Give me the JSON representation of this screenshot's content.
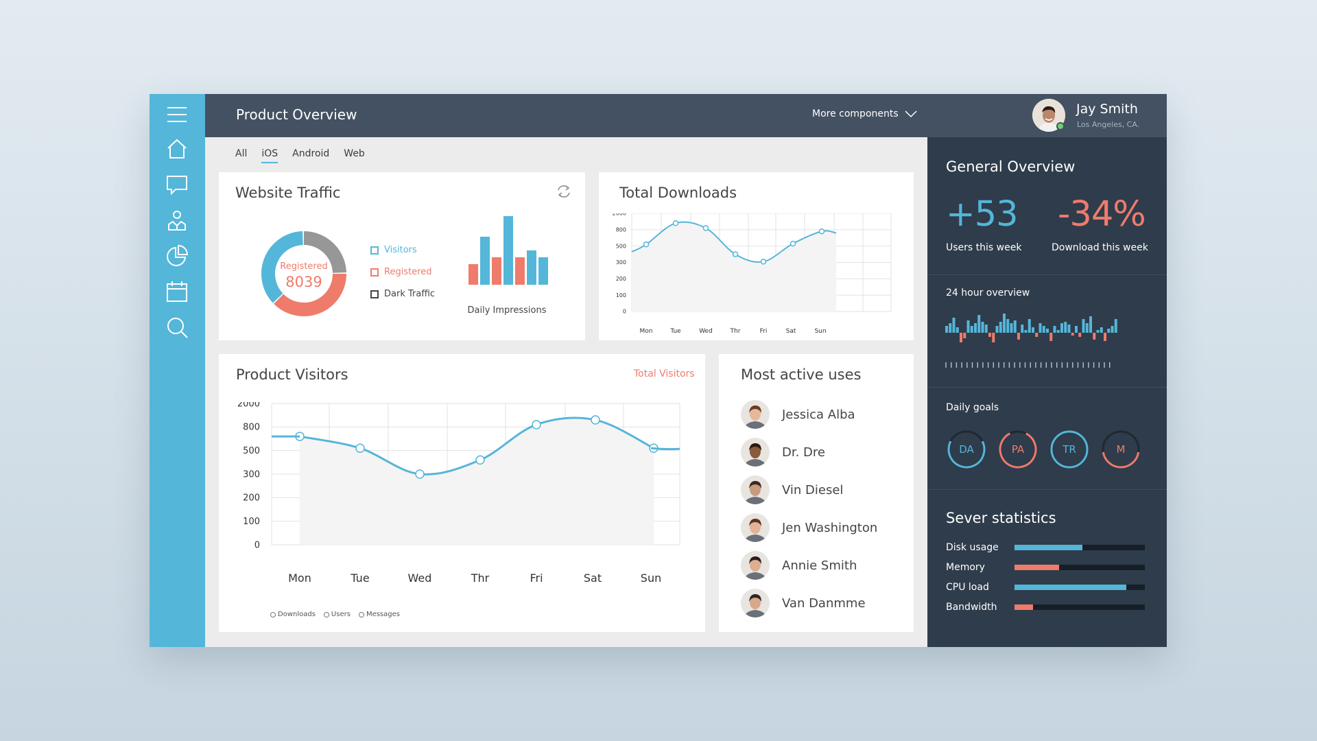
{
  "colors": {
    "accent_blue": "#54b6d9",
    "accent_red": "#ef7b6b",
    "gray": "#979797",
    "topbar": "#435162",
    "panel": "#2f3c4b"
  },
  "nav": {
    "icons": [
      "menu-icon",
      "home-icon",
      "chat-icon",
      "users-icon",
      "pie-chart-icon",
      "calendar-icon",
      "search-icon"
    ]
  },
  "header": {
    "title": "Product Overview",
    "more_components": "More components",
    "user_name": "Jay Smith",
    "user_location": "Los Angeles, CA."
  },
  "tabs": [
    {
      "label": "All",
      "active": false
    },
    {
      "label": "iOS",
      "active": true
    },
    {
      "label": "Android",
      "active": false
    },
    {
      "label": "Web",
      "active": false
    }
  ],
  "website_traffic": {
    "title": "Website Traffic",
    "donut_label": "Registered",
    "donut_value": "8039",
    "legend": [
      {
        "label": "Visitors",
        "color": "#54b6d9"
      },
      {
        "label": "Registered",
        "color": "#ef7b6b"
      },
      {
        "label": "Dark Traffic",
        "color": "#444444"
      }
    ],
    "impressions_label": "Daily Impressions"
  },
  "total_downloads": {
    "title": "Total Downloads"
  },
  "product_visitors": {
    "title": "Product Visitors",
    "filter_label": "Total Visitors",
    "legend": [
      "Downloads",
      "Users",
      "Messages"
    ]
  },
  "most_active": {
    "title": "Most active uses",
    "users": [
      {
        "name": "Jessica Alba",
        "skin": "#e6b89a",
        "hair": "#6b3a22"
      },
      {
        "name": "Dr. Dre",
        "skin": "#8a5a3c",
        "hair": "#2a1a12"
      },
      {
        "name": "Vin Diesel",
        "skin": "#c79b7c",
        "hair": "#3a2a22"
      },
      {
        "name": "Jen Washington",
        "skin": "#e3b297",
        "hair": "#5b3323"
      },
      {
        "name": "Annie Smith",
        "skin": "#dcae92",
        "hair": "#2d1d16"
      },
      {
        "name": "Van Danmme",
        "skin": "#d8a88a",
        "hair": "#2b2520"
      }
    ]
  },
  "general_overview": {
    "title": "General Overview",
    "users_value": "+53",
    "users_label": "Users this week",
    "downloads_value": "-34%",
    "downloads_label": "Download this week",
    "hour_title": "24 hour overview",
    "goals_title": "Daily goals",
    "goals": [
      {
        "label": "DA",
        "color": "#54b6d9",
        "progress": 0.65
      },
      {
        "label": "PA",
        "color": "#ef7b6b",
        "progress": 0.85
      },
      {
        "label": "TR",
        "color": "#54b6d9",
        "progress": 1.0
      },
      {
        "label": "M",
        "color": "#ef7b6b",
        "progress": 0.45
      }
    ]
  },
  "server_stats": {
    "title": "Sever statistics",
    "rows": [
      {
        "label": "Disk usage",
        "value": 0.52,
        "color": "#54b6d9"
      },
      {
        "label": "Memory",
        "value": 0.34,
        "color": "#ef7b6b"
      },
      {
        "label": "CPU load",
        "value": 0.86,
        "color": "#54b6d9"
      },
      {
        "label": "Bandwidth",
        "value": 0.14,
        "color": "#ef7b6b"
      }
    ]
  },
  "chart_data": [
    {
      "type": "pie",
      "name_ref": "website-traffic-donut",
      "categories": [
        "Visitors",
        "Registered",
        "Dark Traffic"
      ],
      "values": [
        37,
        38,
        25
      ]
    },
    {
      "type": "bar",
      "name_ref": "daily-impressions",
      "categories": [
        "1",
        "2",
        "3",
        "4",
        "5",
        "6",
        "7"
      ],
      "series": [
        {
          "values": [
            3,
            7,
            4,
            10,
            4,
            5,
            4
          ]
        }
      ],
      "bar_colors": [
        "#ef7b6b",
        "#54b6d9",
        "#ef7b6b",
        "#54b6d9",
        "#ef7b6b",
        "#54b6d9",
        "#54b6d9"
      ],
      "xlabel": "Daily Impressions"
    },
    {
      "type": "line",
      "name_ref": "total-downloads",
      "x": [
        "Mon",
        "Tue",
        "Wed",
        "Thr",
        "Fri",
        "Sat",
        "Sun"
      ],
      "y_ticks": [
        "0",
        "100",
        "200",
        "300",
        "500",
        "800",
        "2000"
      ],
      "points": [
        {
          "label": "",
          "y": 3.65
        },
        {
          "label": "Mon",
          "y": 4.1
        },
        {
          "label": "Tue",
          "y": 5.4
        },
        {
          "label": "Wed",
          "y": 5.1
        },
        {
          "label": "Thr",
          "y": 3.5
        },
        {
          "label": "Fri",
          "y": 3.05
        },
        {
          "label": "Sat",
          "y": 4.15
        },
        {
          "label": "Sun",
          "y": 4.9
        },
        {
          "label": "",
          "y": 4.8
        }
      ]
    },
    {
      "type": "line",
      "name_ref": "product-visitors",
      "x": [
        "Mon",
        "Tue",
        "Wed",
        "Thr",
        "Fri",
        "Sat",
        "Sun"
      ],
      "y_ticks": [
        "0",
        "100",
        "200",
        "300",
        "500",
        "800",
        "2000"
      ],
      "points": [
        {
          "label": "Mon",
          "y": 4.6
        },
        {
          "label": "Tue",
          "y": 4.1
        },
        {
          "label": "Wed",
          "y": 3.0
        },
        {
          "label": "Thr",
          "y": 3.6
        },
        {
          "label": "Fri",
          "y": 5.1
        },
        {
          "label": "Sat",
          "y": 5.3
        },
        {
          "label": "Sun",
          "y": 4.1
        }
      ]
    },
    {
      "type": "bar",
      "name_ref": "24-hour-overview",
      "categories": [
        "1",
        "2",
        "3",
        "4",
        "5",
        "6",
        "7",
        "8",
        "9",
        "10",
        "11",
        "12",
        "13",
        "14",
        "15",
        "16",
        "17",
        "18",
        "19",
        "20",
        "21",
        "22",
        "23",
        "24",
        "25",
        "26",
        "27",
        "28",
        "29",
        "30",
        "31",
        "32",
        "33",
        "34",
        "35",
        "36",
        "37",
        "38",
        "39",
        "40",
        "41",
        "42",
        "43",
        "44",
        "45",
        "46",
        "47",
        "48"
      ],
      "values": [
        10,
        14,
        22,
        8,
        -14,
        -8,
        18,
        10,
        14,
        26,
        16,
        12,
        -6,
        -14,
        10,
        16,
        28,
        20,
        14,
        18,
        -10,
        12,
        4,
        20,
        8,
        -6,
        14,
        10,
        6,
        -12,
        10,
        4,
        14,
        16,
        12,
        -4,
        10,
        -6,
        20,
        14,
        24,
        -10,
        4,
        8,
        -12,
        6,
        10,
        20
      ]
    }
  ]
}
